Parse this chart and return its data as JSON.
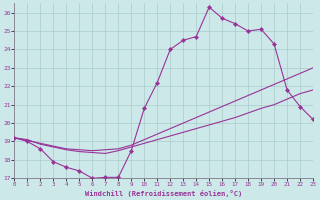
{
  "xlabel": "Windchill (Refroidissement éolien,°C)",
  "bg_color": "#cce8e8",
  "line_color": "#993399",
  "grid_color": "#aacccc",
  "xmin": 0,
  "xmax": 23,
  "ymin": 17,
  "ymax": 26.5,
  "yticks": [
    17,
    18,
    19,
    20,
    21,
    22,
    23,
    24,
    25,
    26
  ],
  "xticks": [
    0,
    1,
    2,
    3,
    4,
    5,
    6,
    7,
    8,
    9,
    10,
    11,
    12,
    13,
    14,
    15,
    16,
    17,
    18,
    19,
    20,
    21,
    22,
    23
  ],
  "line1_x": [
    0,
    1,
    2,
    3,
    4,
    5,
    6,
    7,
    8,
    9,
    10,
    11,
    12,
    13,
    14,
    15,
    16,
    17,
    18,
    19,
    20,
    21,
    22,
    23
  ],
  "line1_y": [
    19.2,
    19.0,
    18.6,
    17.9,
    17.6,
    17.4,
    17.0,
    17.05,
    17.05,
    18.5,
    20.8,
    22.2,
    24.0,
    24.5,
    24.7,
    26.3,
    25.7,
    25.4,
    25.0,
    25.1,
    24.3,
    21.8,
    20.9,
    20.2
  ],
  "line2_x": [
    0,
    1,
    2,
    3,
    4,
    5,
    6,
    7,
    8,
    9,
    10,
    11,
    12,
    13,
    14,
    15,
    16,
    17,
    18,
    19,
    20,
    21,
    22,
    23
  ],
  "line2_y": [
    19.2,
    19.1,
    18.85,
    18.7,
    18.55,
    18.45,
    18.4,
    18.35,
    18.5,
    18.7,
    18.9,
    19.1,
    19.3,
    19.5,
    19.7,
    19.9,
    20.1,
    20.3,
    20.55,
    20.8,
    21.0,
    21.3,
    21.6,
    21.8
  ],
  "line3_x": [
    0,
    1,
    2,
    3,
    4,
    5,
    6,
    7,
    8,
    9,
    10,
    11,
    12,
    13,
    14,
    15,
    16,
    17,
    18,
    19,
    20,
    21,
    22,
    23
  ],
  "line3_y": [
    19.2,
    19.05,
    18.9,
    18.75,
    18.6,
    18.55,
    18.5,
    18.55,
    18.6,
    18.8,
    19.1,
    19.4,
    19.7,
    20.0,
    20.3,
    20.6,
    20.9,
    21.2,
    21.5,
    21.8,
    22.1,
    22.4,
    22.7,
    23.0
  ]
}
